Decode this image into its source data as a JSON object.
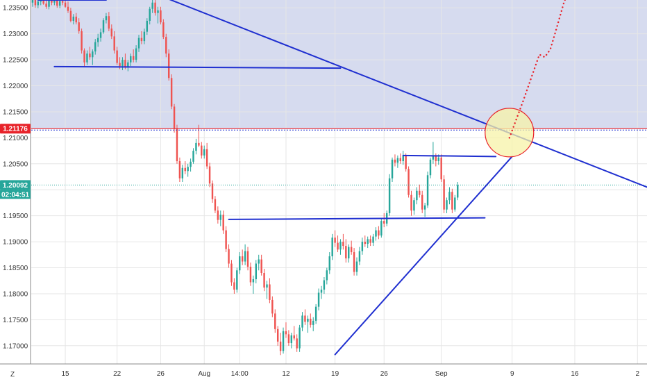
{
  "chart_data": {
    "type": "candlestick",
    "y_ticks": [
      "1.23500",
      "1.23000",
      "1.22500",
      "1.22000",
      "1.21500",
      "1.21000",
      "1.20500",
      "1.20000",
      "1.19500",
      "1.19000",
      "1.18500",
      "1.18000",
      "1.17500",
      "1.17000"
    ],
    "y_tick_values": [
      1.235,
      1.23,
      1.225,
      1.22,
      1.215,
      1.21,
      1.205,
      1.2,
      1.195,
      1.19,
      1.185,
      1.18,
      1.175,
      1.17
    ],
    "ylim": [
      1.1665,
      1.2365
    ],
    "x_ticks": [
      "15",
      "22",
      "26",
      "Aug",
      "14:00",
      "12",
      "19",
      "26",
      "Sep",
      "9",
      "16",
      "2"
    ],
    "x_tick_bar_index": [
      12,
      31,
      47,
      63,
      76,
      93,
      111,
      129,
      150,
      176,
      199,
      222
    ],
    "bars_total": 226,
    "corner_label": "Z",
    "resistance_level": {
      "label": "1.21176",
      "value": 1.21176,
      "color": "#e8232a"
    },
    "current_price": {
      "label": "1.20092",
      "value": 1.20092,
      "color": "#26a69a"
    },
    "countdown": {
      "label": "02:04:51",
      "color": "#26a69a"
    },
    "colors": {
      "up": "#26a69a",
      "down": "#ef5350",
      "drawing": "#1f2fd0",
      "zone": "#d6dbef",
      "projection": "#e8232a",
      "circle_fill": "#f7f3a8",
      "circle_edge": "#e8232a"
    },
    "drawings": [
      {
        "name": "top-left-resistance",
        "from": [
          2,
          1.2365
        ],
        "to": [
          27,
          1.2365
        ]
      },
      {
        "name": "range-support-line",
        "from": [
          8,
          1.2237
        ],
        "to": [
          113,
          1.2234
        ]
      },
      {
        "name": "descending-trendline",
        "from": [
          45,
          1.2377
        ],
        "to": [
          227,
          1.2002
        ]
      },
      {
        "name": "neckline",
        "from": [
          72,
          1.1943
        ],
        "to": [
          166,
          1.1946
        ]
      },
      {
        "name": "top-resistance-line",
        "from": [
          136,
          1.2066
        ],
        "to": [
          170,
          1.2064
        ]
      },
      {
        "name": "ascending-trendline",
        "from": [
          111,
          1.1683
        ],
        "to": [
          176,
          1.2064
        ]
      }
    ],
    "projection_path": [
      [
        175,
        1.21
      ],
      [
        180,
        1.217
      ],
      [
        184,
        1.223
      ],
      [
        186,
        1.226
      ],
      [
        188,
        1.2255
      ],
      [
        190,
        1.227
      ],
      [
        192,
        1.2305
      ],
      [
        195,
        1.236
      ],
      [
        198,
        1.24
      ]
    ],
    "breakout_circle": {
      "center": [
        175,
        1.211
      ],
      "radius_px": 35
    },
    "candles": [
      {
        "o": 1.236,
        "h": 1.2368,
        "l": 1.2352,
        "c": 1.2365
      },
      {
        "o": 1.2365,
        "h": 1.2372,
        "l": 1.235,
        "c": 1.2355
      },
      {
        "o": 1.2355,
        "h": 1.2368,
        "l": 1.2349,
        "c": 1.2362
      },
      {
        "o": 1.2362,
        "h": 1.237,
        "l": 1.2355,
        "c": 1.2368
      },
      {
        "o": 1.2368,
        "h": 1.2372,
        "l": 1.2356,
        "c": 1.2358
      },
      {
        "o": 1.2358,
        "h": 1.2366,
        "l": 1.2348,
        "c": 1.2352
      },
      {
        "o": 1.2352,
        "h": 1.2366,
        "l": 1.2347,
        "c": 1.2364
      },
      {
        "o": 1.2364,
        "h": 1.237,
        "l": 1.2355,
        "c": 1.236
      },
      {
        "o": 1.236,
        "h": 1.2372,
        "l": 1.2355,
        "c": 1.2367
      },
      {
        "o": 1.2367,
        "h": 1.2372,
        "l": 1.235,
        "c": 1.2354
      },
      {
        "o": 1.2354,
        "h": 1.2366,
        "l": 1.2349,
        "c": 1.2363
      },
      {
        "o": 1.2363,
        "h": 1.237,
        "l": 1.2355,
        "c": 1.236
      },
      {
        "o": 1.236,
        "h": 1.2372,
        "l": 1.235,
        "c": 1.2352
      },
      {
        "o": 1.2352,
        "h": 1.2362,
        "l": 1.234,
        "c": 1.2344
      },
      {
        "o": 1.2344,
        "h": 1.235,
        "l": 1.2322,
        "c": 1.2325
      },
      {
        "o": 1.2325,
        "h": 1.2338,
        "l": 1.2318,
        "c": 1.2333
      },
      {
        "o": 1.2333,
        "h": 1.234,
        "l": 1.2318,
        "c": 1.2322
      },
      {
        "o": 1.2322,
        "h": 1.233,
        "l": 1.23,
        "c": 1.2305
      },
      {
        "o": 1.2305,
        "h": 1.231,
        "l": 1.2262,
        "c": 1.2268
      },
      {
        "o": 1.2268,
        "h": 1.2272,
        "l": 1.2237,
        "c": 1.2245
      },
      {
        "o": 1.2245,
        "h": 1.2268,
        "l": 1.224,
        "c": 1.2262
      },
      {
        "o": 1.2262,
        "h": 1.2275,
        "l": 1.225,
        "c": 1.2255
      },
      {
        "o": 1.2255,
        "h": 1.227,
        "l": 1.224,
        "c": 1.2266
      },
      {
        "o": 1.2266,
        "h": 1.229,
        "l": 1.226,
        "c": 1.2284
      },
      {
        "o": 1.2284,
        "h": 1.23,
        "l": 1.2275,
        "c": 1.2292
      },
      {
        "o": 1.2292,
        "h": 1.231,
        "l": 1.2285,
        "c": 1.2303
      },
      {
        "o": 1.2303,
        "h": 1.233,
        "l": 1.23,
        "c": 1.2326
      },
      {
        "o": 1.2326,
        "h": 1.234,
        "l": 1.232,
        "c": 1.2334
      },
      {
        "o": 1.2334,
        "h": 1.2342,
        "l": 1.2305,
        "c": 1.231
      },
      {
        "o": 1.231,
        "h": 1.2318,
        "l": 1.229,
        "c": 1.2295
      },
      {
        "o": 1.2295,
        "h": 1.2305,
        "l": 1.2262,
        "c": 1.2268
      },
      {
        "o": 1.2268,
        "h": 1.2275,
        "l": 1.224,
        "c": 1.2244
      },
      {
        "o": 1.2244,
        "h": 1.2255,
        "l": 1.2232,
        "c": 1.2238
      },
      {
        "o": 1.2238,
        "h": 1.2255,
        "l": 1.223,
        "c": 1.225
      },
      {
        "o": 1.225,
        "h": 1.2262,
        "l": 1.2232,
        "c": 1.2236
      },
      {
        "o": 1.2236,
        "h": 1.225,
        "l": 1.2228,
        "c": 1.2245
      },
      {
        "o": 1.2245,
        "h": 1.2262,
        "l": 1.2238,
        "c": 1.2257
      },
      {
        "o": 1.2257,
        "h": 1.227,
        "l": 1.2245,
        "c": 1.225
      },
      {
        "o": 1.225,
        "h": 1.2278,
        "l": 1.2245,
        "c": 1.2272
      },
      {
        "o": 1.2272,
        "h": 1.2298,
        "l": 1.2265,
        "c": 1.2292
      },
      {
        "o": 1.2292,
        "h": 1.2305,
        "l": 1.228,
        "c": 1.2286
      },
      {
        "o": 1.2286,
        "h": 1.231,
        "l": 1.228,
        "c": 1.2304
      },
      {
        "o": 1.2304,
        "h": 1.233,
        "l": 1.2298,
        "c": 1.2325
      },
      {
        "o": 1.2325,
        "h": 1.2352,
        "l": 1.2318,
        "c": 1.2348
      },
      {
        "o": 1.2348,
        "h": 1.2372,
        "l": 1.234,
        "c": 1.236
      },
      {
        "o": 1.236,
        "h": 1.2368,
        "l": 1.2335,
        "c": 1.234
      },
      {
        "o": 1.234,
        "h": 1.2352,
        "l": 1.232,
        "c": 1.2345
      },
      {
        "o": 1.2345,
        "h": 1.2352,
        "l": 1.2318,
        "c": 1.2322
      },
      {
        "o": 1.2322,
        "h": 1.2328,
        "l": 1.229,
        "c": 1.2294
      },
      {
        "o": 1.2294,
        "h": 1.23,
        "l": 1.2255,
        "c": 1.2262
      },
      {
        "o": 1.2262,
        "h": 1.227,
        "l": 1.221,
        "c": 1.2215
      },
      {
        "o": 1.2215,
        "h": 1.2222,
        "l": 1.2155,
        "c": 1.216
      },
      {
        "o": 1.216,
        "h": 1.2165,
        "l": 1.211,
        "c": 1.2118
      },
      {
        "o": 1.2118,
        "h": 1.2125,
        "l": 1.205,
        "c": 1.2055
      },
      {
        "o": 1.2055,
        "h": 1.2062,
        "l": 1.2015,
        "c": 1.2022
      },
      {
        "o": 1.2022,
        "h": 1.2048,
        "l": 1.2015,
        "c": 1.2042
      },
      {
        "o": 1.2042,
        "h": 1.2055,
        "l": 1.203,
        "c": 1.2036
      },
      {
        "o": 1.2036,
        "h": 1.205,
        "l": 1.2025,
        "c": 1.2044
      },
      {
        "o": 1.2044,
        "h": 1.206,
        "l": 1.2035,
        "c": 1.2054
      },
      {
        "o": 1.2054,
        "h": 1.208,
        "l": 1.205,
        "c": 1.2075
      },
      {
        "o": 1.2075,
        "h": 1.2098,
        "l": 1.2068,
        "c": 1.209
      },
      {
        "o": 1.209,
        "h": 1.2125,
        "l": 1.2082,
        "c": 1.2085
      },
      {
        "o": 1.2085,
        "h": 1.2092,
        "l": 1.206,
        "c": 1.2066
      },
      {
        "o": 1.2066,
        "h": 1.2085,
        "l": 1.206,
        "c": 1.2078
      },
      {
        "o": 1.2078,
        "h": 1.209,
        "l": 1.204,
        "c": 1.2045
      },
      {
        "o": 1.2045,
        "h": 1.2052,
        "l": 1.2005,
        "c": 1.2012
      },
      {
        "o": 1.2012,
        "h": 1.2018,
        "l": 1.1975,
        "c": 1.1982
      },
      {
        "o": 1.1982,
        "h": 1.1988,
        "l": 1.1955,
        "c": 1.196
      },
      {
        "o": 1.196,
        "h": 1.1968,
        "l": 1.1935,
        "c": 1.1942
      },
      {
        "o": 1.1942,
        "h": 1.196,
        "l": 1.193,
        "c": 1.1952
      },
      {
        "o": 1.1952,
        "h": 1.196,
        "l": 1.1915,
        "c": 1.1922
      },
      {
        "o": 1.1922,
        "h": 1.193,
        "l": 1.188,
        "c": 1.1886
      },
      {
        "o": 1.1886,
        "h": 1.1895,
        "l": 1.185,
        "c": 1.1858
      },
      {
        "o": 1.1858,
        "h": 1.1865,
        "l": 1.1815,
        "c": 1.1822
      },
      {
        "o": 1.1822,
        "h": 1.183,
        "l": 1.18,
        "c": 1.1808
      },
      {
        "o": 1.1808,
        "h": 1.185,
        "l": 1.1802,
        "c": 1.1845
      },
      {
        "o": 1.1845,
        "h": 1.188,
        "l": 1.1838,
        "c": 1.1872
      },
      {
        "o": 1.1872,
        "h": 1.1885,
        "l": 1.1855,
        "c": 1.1862
      },
      {
        "o": 1.1862,
        "h": 1.1895,
        "l": 1.1855,
        "c": 1.1882
      },
      {
        "o": 1.1882,
        "h": 1.189,
        "l": 1.1845,
        "c": 1.1852
      },
      {
        "o": 1.1852,
        "h": 1.186,
        "l": 1.1815,
        "c": 1.1822
      },
      {
        "o": 1.1822,
        "h": 1.1835,
        "l": 1.18,
        "c": 1.1828
      },
      {
        "o": 1.1828,
        "h": 1.1865,
        "l": 1.182,
        "c": 1.1858
      },
      {
        "o": 1.1858,
        "h": 1.1875,
        "l": 1.1845,
        "c": 1.1866
      },
      {
        "o": 1.1866,
        "h": 1.1875,
        "l": 1.1835,
        "c": 1.184
      },
      {
        "o": 1.184,
        "h": 1.1848,
        "l": 1.1805,
        "c": 1.1812
      },
      {
        "o": 1.1812,
        "h": 1.1825,
        "l": 1.179,
        "c": 1.1818
      },
      {
        "o": 1.1818,
        "h": 1.183,
        "l": 1.1782,
        "c": 1.1788
      },
      {
        "o": 1.1788,
        "h": 1.1795,
        "l": 1.1755,
        "c": 1.1762
      },
      {
        "o": 1.1762,
        "h": 1.177,
        "l": 1.1725,
        "c": 1.1732
      },
      {
        "o": 1.1732,
        "h": 1.1738,
        "l": 1.17,
        "c": 1.1708
      },
      {
        "o": 1.1708,
        "h": 1.1725,
        "l": 1.1682,
        "c": 1.169
      },
      {
        "o": 1.169,
        "h": 1.1735,
        "l": 1.1685,
        "c": 1.1728
      },
      {
        "o": 1.1728,
        "h": 1.1745,
        "l": 1.1715,
        "c": 1.1722
      },
      {
        "o": 1.1722,
        "h": 1.173,
        "l": 1.17,
        "c": 1.1705
      },
      {
        "o": 1.1705,
        "h": 1.1725,
        "l": 1.1695,
        "c": 1.172
      },
      {
        "o": 1.172,
        "h": 1.1738,
        "l": 1.171,
        "c": 1.1714
      },
      {
        "o": 1.1714,
        "h": 1.1722,
        "l": 1.1688,
        "c": 1.1695
      },
      {
        "o": 1.1695,
        "h": 1.174,
        "l": 1.1688,
        "c": 1.1735
      },
      {
        "o": 1.1735,
        "h": 1.1765,
        "l": 1.1728,
        "c": 1.1758
      },
      {
        "o": 1.1758,
        "h": 1.177,
        "l": 1.174,
        "c": 1.1746
      },
      {
        "o": 1.1746,
        "h": 1.1758,
        "l": 1.1725,
        "c": 1.1752
      },
      {
        "o": 1.1752,
        "h": 1.1762,
        "l": 1.1735,
        "c": 1.174
      },
      {
        "o": 1.174,
        "h": 1.1755,
        "l": 1.1728,
        "c": 1.1748
      },
      {
        "o": 1.1748,
        "h": 1.178,
        "l": 1.1742,
        "c": 1.1775
      },
      {
        "o": 1.1775,
        "h": 1.181,
        "l": 1.1768,
        "c": 1.1802
      },
      {
        "o": 1.1802,
        "h": 1.1815,
        "l": 1.179,
        "c": 1.1808
      },
      {
        "o": 1.1808,
        "h": 1.1832,
        "l": 1.18,
        "c": 1.1826
      },
      {
        "o": 1.1826,
        "h": 1.185,
        "l": 1.1818,
        "c": 1.1845
      },
      {
        "o": 1.1845,
        "h": 1.188,
        "l": 1.1838,
        "c": 1.1872
      },
      {
        "o": 1.1872,
        "h": 1.1915,
        "l": 1.1865,
        "c": 1.1908
      },
      {
        "o": 1.1908,
        "h": 1.1922,
        "l": 1.189,
        "c": 1.1898
      },
      {
        "o": 1.1898,
        "h": 1.1912,
        "l": 1.188,
        "c": 1.1885
      },
      {
        "o": 1.1885,
        "h": 1.1905,
        "l": 1.1875,
        "c": 1.19
      },
      {
        "o": 1.19,
        "h": 1.1915,
        "l": 1.1885,
        "c": 1.1892
      },
      {
        "o": 1.1892,
        "h": 1.1905,
        "l": 1.186,
        "c": 1.1868
      },
      {
        "o": 1.1868,
        "h": 1.1895,
        "l": 1.186,
        "c": 1.189
      },
      {
        "o": 1.189,
        "h": 1.1902,
        "l": 1.1875,
        "c": 1.188
      },
      {
        "o": 1.188,
        "h": 1.1888,
        "l": 1.1835,
        "c": 1.1842
      },
      {
        "o": 1.1842,
        "h": 1.187,
        "l": 1.1835,
        "c": 1.1862
      },
      {
        "o": 1.1862,
        "h": 1.189,
        "l": 1.1855,
        "c": 1.1882
      },
      {
        "o": 1.1882,
        "h": 1.1908,
        "l": 1.1875,
        "c": 1.19
      },
      {
        "o": 1.19,
        "h": 1.1912,
        "l": 1.189,
        "c": 1.1896
      },
      {
        "o": 1.1896,
        "h": 1.191,
        "l": 1.1888,
        "c": 1.1905
      },
      {
        "o": 1.1905,
        "h": 1.1912,
        "l": 1.1892,
        "c": 1.1898
      },
      {
        "o": 1.1898,
        "h": 1.1915,
        "l": 1.1892,
        "c": 1.191
      },
      {
        "o": 1.191,
        "h": 1.1928,
        "l": 1.1902,
        "c": 1.1922
      },
      {
        "o": 1.1922,
        "h": 1.193,
        "l": 1.1905,
        "c": 1.1912
      },
      {
        "o": 1.1912,
        "h": 1.1945,
        "l": 1.1908,
        "c": 1.194
      },
      {
        "o": 1.194,
        "h": 1.1955,
        "l": 1.1928,
        "c": 1.1935
      },
      {
        "o": 1.1935,
        "h": 1.196,
        "l": 1.193,
        "c": 1.1955
      },
      {
        "o": 1.1955,
        "h": 1.203,
        "l": 1.195,
        "c": 1.2022
      },
      {
        "o": 1.2022,
        "h": 1.2062,
        "l": 1.2015,
        "c": 1.2058
      },
      {
        "o": 1.2058,
        "h": 1.2068,
        "l": 1.2045,
        "c": 1.2052
      },
      {
        "o": 1.2052,
        "h": 1.2066,
        "l": 1.2042,
        "c": 1.2061
      },
      {
        "o": 1.2061,
        "h": 1.207,
        "l": 1.205,
        "c": 1.2055
      },
      {
        "o": 1.2055,
        "h": 1.2075,
        "l": 1.2048,
        "c": 1.2066
      },
      {
        "o": 1.2066,
        "h": 1.207,
        "l": 1.2035,
        "c": 1.204
      },
      {
        "o": 1.204,
        "h": 1.2045,
        "l": 1.1985,
        "c": 1.199
      },
      {
        "o": 1.199,
        "h": 1.1998,
        "l": 1.195,
        "c": 1.196
      },
      {
        "o": 1.196,
        "h": 1.1985,
        "l": 1.1952,
        "c": 1.198
      },
      {
        "o": 1.198,
        "h": 1.2005,
        "l": 1.1972,
        "c": 1.1998
      },
      {
        "o": 1.1998,
        "h": 1.201,
        "l": 1.1985,
        "c": 1.199
      },
      {
        "o": 1.199,
        "h": 1.1998,
        "l": 1.1955,
        "c": 1.1962
      },
      {
        "o": 1.1962,
        "h": 1.1975,
        "l": 1.1948,
        "c": 1.197
      },
      {
        "o": 1.197,
        "h": 1.2035,
        "l": 1.1965,
        "c": 1.2028
      },
      {
        "o": 1.2028,
        "h": 1.2062,
        "l": 1.2022,
        "c": 1.2058
      },
      {
        "o": 1.2058,
        "h": 1.2092,
        "l": 1.205,
        "c": 1.2065
      },
      {
        "o": 1.2065,
        "h": 1.207,
        "l": 1.2045,
        "c": 1.2055
      },
      {
        "o": 1.2055,
        "h": 1.2068,
        "l": 1.2048,
        "c": 1.2062
      },
      {
        "o": 1.2062,
        "h": 1.2068,
        "l": 1.2015,
        "c": 1.202
      },
      {
        "o": 1.202,
        "h": 1.2028,
        "l": 1.1955,
        "c": 1.1962
      },
      {
        "o": 1.1962,
        "h": 1.1985,
        "l": 1.1955,
        "c": 1.198
      },
      {
        "o": 1.198,
        "h": 1.2005,
        "l": 1.1972,
        "c": 1.1996
      },
      {
        "o": 1.1996,
        "h": 1.2002,
        "l": 1.1955,
        "c": 1.1962
      },
      {
        "o": 1.1962,
        "h": 1.199,
        "l": 1.1958,
        "c": 1.1985
      },
      {
        "o": 1.1985,
        "h": 1.2015,
        "l": 1.198,
        "c": 1.2009
      }
    ]
  }
}
